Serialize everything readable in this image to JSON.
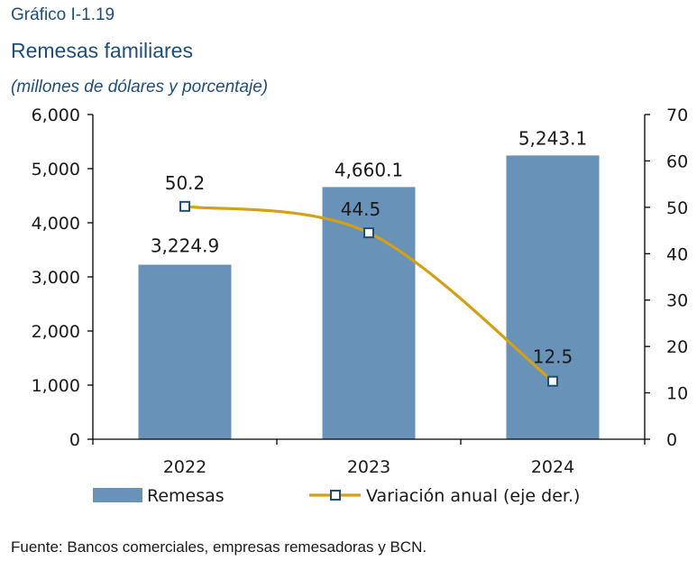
{
  "figure_label": "Gráfico I-1.19",
  "title": "Remesas familiares",
  "subtitle": "(millones de dólares y porcentaje)",
  "source": "Fuente: Bancos comerciales, empresas remesadoras y BCN.",
  "colors": {
    "bar": "#6892b7",
    "line": "#d4a017",
    "marker_stroke": "#1f4e79",
    "axis": "#000000"
  },
  "chart_data": {
    "type": "bar",
    "categories": [
      "2022",
      "2023",
      "2024"
    ],
    "series": [
      {
        "name": "Remesas",
        "type": "bar",
        "axis": "left",
        "values": [
          3224.9,
          4660.1,
          5243.1
        ],
        "labels": [
          "3,224.9",
          "4,660.1",
          "5,243.1"
        ]
      },
      {
        "name": "Variación anual (eje der.)",
        "type": "line",
        "axis": "right",
        "values": [
          50.2,
          44.5,
          12.5
        ],
        "labels": [
          "50.2",
          "44.5",
          "12.5"
        ]
      }
    ],
    "ylim": [
      0,
      6000
    ],
    "y_ticks": [
      "0",
      "1,000",
      "2,000",
      "3,000",
      "4,000",
      "5,000",
      "6,000"
    ],
    "y2lim": [
      0,
      70
    ],
    "y2_ticks": [
      "0",
      "10",
      "20",
      "30",
      "40",
      "50",
      "60",
      "70"
    ],
    "grid": false,
    "legend": "bottom"
  }
}
